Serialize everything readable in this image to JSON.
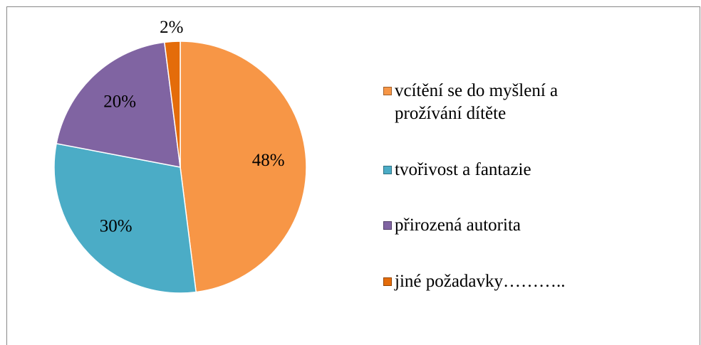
{
  "chart_data": {
    "type": "pie",
    "categories": [
      "vcítění se do myšlení a prožívání dítěte",
      "tvořivost a fantazie",
      "přirozená autorita",
      "jiné požadavky……….."
    ],
    "values": [
      48,
      30,
      20,
      2
    ],
    "value_labels": [
      "48%",
      "30%",
      "20%",
      "2%"
    ],
    "colors": [
      "#f79646",
      "#4bacc6",
      "#8064a2",
      "#e46c0a"
    ],
    "legend": "right"
  }
}
